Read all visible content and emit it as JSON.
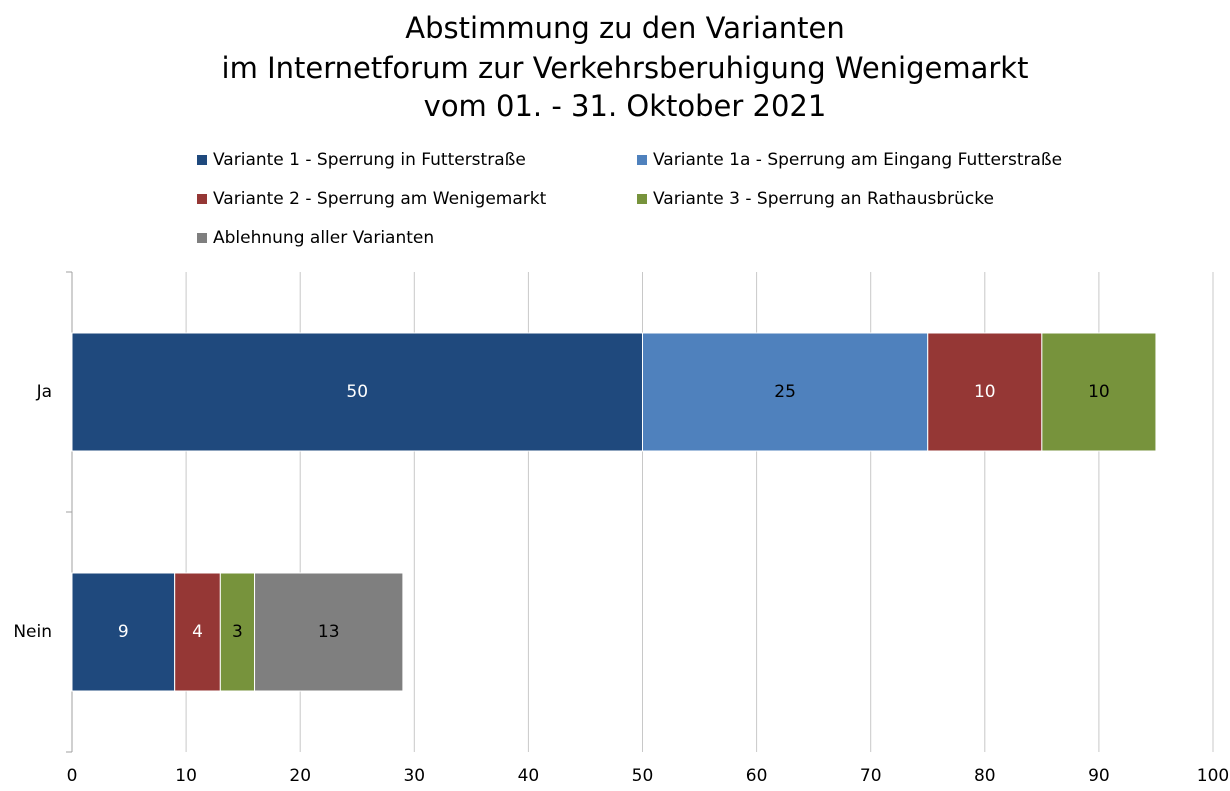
{
  "chart_data": {
    "type": "stacked-barh",
    "title": [
      "Abstimmung zu den Varianten",
      "im Internetforum zur Verkehrsberuhigung Wenigemarkt",
      "vom 01. - 31. Oktober 2021"
    ],
    "categories": [
      "Ja",
      "Nein"
    ],
    "series": [
      {
        "name": "Variante 1 - Sperrung in Futterstraße",
        "color": "#1f497d",
        "values": [
          50,
          9
        ]
      },
      {
        "name": "Variante 1a - Sperrung am Eingang Futterstraße",
        "color": "#4f81bd",
        "values": [
          25,
          null
        ]
      },
      {
        "name": "Variante 2 - Sperrung am Wenigemarkt",
        "color": "#953735",
        "values": [
          10,
          4
        ]
      },
      {
        "name": "Variante 3 - Sperrung an Rathausbrücke",
        "color": "#77933c",
        "values": [
          10,
          3
        ]
      },
      {
        "name": "Ablehnung aller Varianten",
        "color": "#7f7f7f",
        "values": [
          null,
          13
        ]
      }
    ],
    "xlim": [
      0,
      100
    ],
    "xticks": [
      0,
      10,
      20,
      30,
      40,
      50,
      60,
      70,
      80,
      90,
      100
    ],
    "grid": true,
    "legend": "top"
  }
}
